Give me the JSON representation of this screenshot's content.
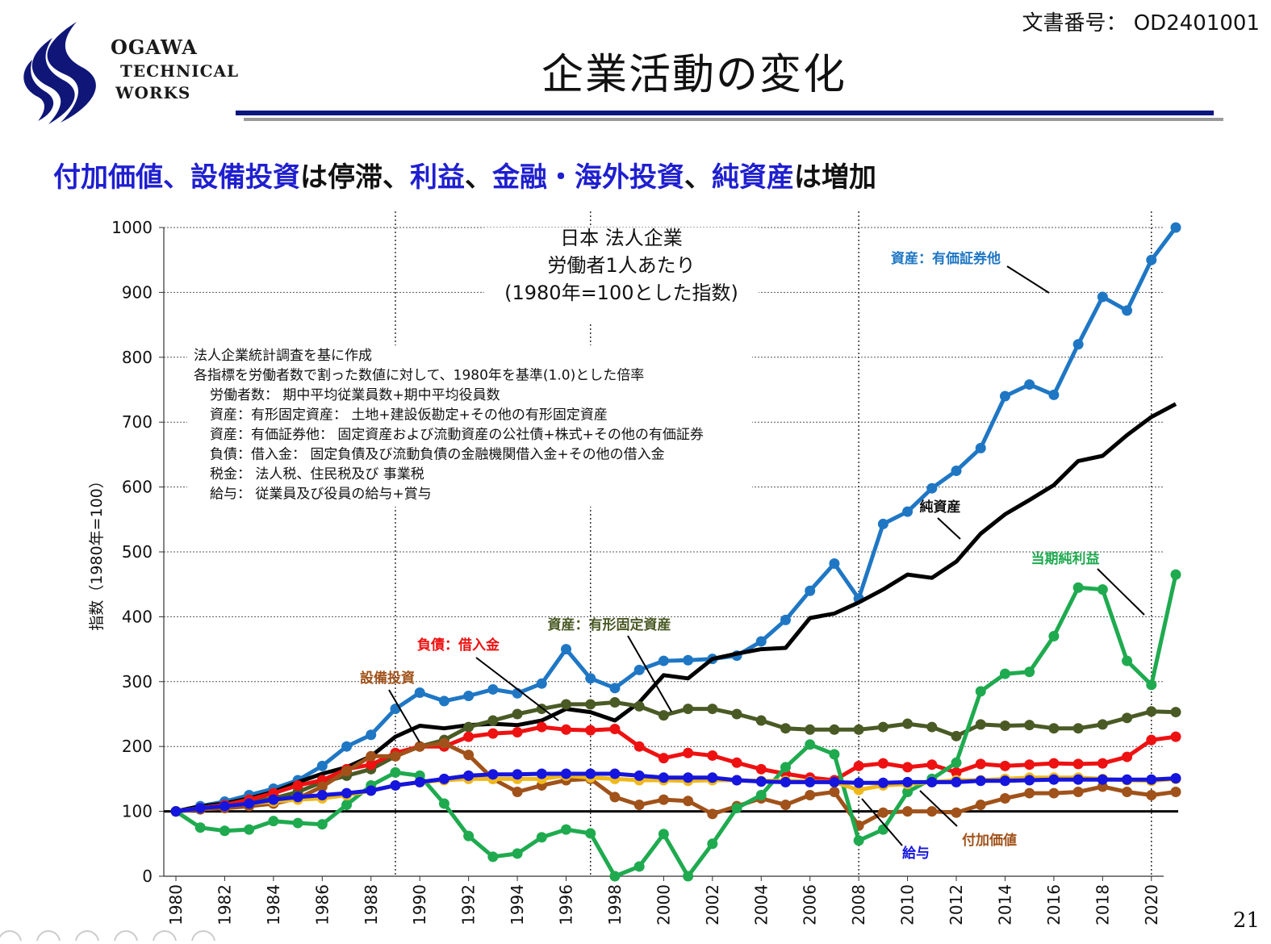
{
  "header": {
    "logo": {
      "line1": "OGAWA",
      "line2": "TECHNICAL",
      "line3": "WORKS"
    },
    "doc_number": "文書番号： OD2401001",
    "title": "企業活動の変化",
    "page_number": "21"
  },
  "subtitle": {
    "p1": "付加価値、設備投資",
    "p2": "は停滞、",
    "p3": "利益",
    "p4": "、",
    "p5": "金融・海外投資",
    "p6": "、",
    "p7": "純資産",
    "p8": "は増加"
  },
  "colors": {
    "accent_blue": "#1f1fd0",
    "rule_navy": "#0a1680"
  },
  "chart_data": {
    "type": "line",
    "title_lines": [
      "日本 法人企業",
      "労働者1人あたり",
      "(1980年=100とした指数)"
    ],
    "ylabel": "指数（1980年=100）",
    "ylim": [
      0,
      1000
    ],
    "yticks": [
      0,
      100,
      200,
      300,
      400,
      500,
      600,
      700,
      800,
      900,
      1000
    ],
    "xlim": [
      1980,
      2021
    ],
    "xticks": [
      1980,
      1982,
      1984,
      1986,
      1988,
      1990,
      1992,
      1994,
      1996,
      1998,
      2000,
      2002,
      2004,
      2006,
      2008,
      2010,
      2012,
      2014,
      2016,
      2018,
      2020
    ],
    "vlines": [
      1989,
      1997,
      2008,
      2020
    ],
    "baseline": 100,
    "notes": [
      "法人企業統計調査を基に作成",
      "各指標を労働者数で割った数値に対して、1980年を基準(1.0)とした倍率",
      "労働者数： 期中平均従業員数+期中平均役員数",
      "資産：有形固定資産： 土地+建設仮勘定+その他の有形固定資産",
      "資産：有価証券他： 固定資産および流動資産の公社債+株式+その他の有価証券",
      "負債：借入金： 固定負債及び流動負債の金融機関借入金+その他の借入金",
      "税金： 法人税、住民税及び 事業税",
      "給与： 従業員及び役員の給与+賞与"
    ],
    "series": [
      {
        "name": "資産：有価証券他",
        "color": "#1f77c4",
        "marker": true,
        "values": [
          100,
          108,
          115,
          125,
          135,
          148,
          170,
          200,
          218,
          258,
          283,
          270,
          278,
          288,
          282,
          297,
          350,
          305,
          290,
          318,
          332,
          333,
          335,
          340,
          362,
          395,
          440,
          482,
          428,
          543,
          562,
          598,
          625,
          660,
          740,
          758,
          742,
          820,
          893,
          872,
          950,
          1000,
          null
        ]
      },
      {
        "name": "純資産",
        "color": "#000000",
        "marker": false,
        "values": [
          100,
          108,
          112,
          120,
          130,
          145,
          158,
          168,
          185,
          215,
          232,
          228,
          233,
          235,
          233,
          240,
          258,
          253,
          240,
          268,
          310,
          305,
          335,
          343,
          350,
          352,
          398,
          405,
          422,
          442,
          465,
          460,
          485,
          528,
          558,
          580,
          603,
          640,
          648,
          680,
          708,
          728,
          null
        ]
      },
      {
        "name": "資産：有形固定資産",
        "color": "#4a5a25",
        "marker": true,
        "values": [
          100,
          105,
          110,
          115,
          120,
          130,
          145,
          155,
          165,
          185,
          200,
          210,
          230,
          240,
          250,
          258,
          265,
          265,
          268,
          262,
          248,
          258,
          258,
          250,
          240,
          228,
          226,
          226,
          226,
          230,
          235,
          230,
          216,
          234,
          232,
          233,
          228,
          228,
          234,
          244,
          254,
          253,
          null
        ]
      },
      {
        "name": "負債：借入金",
        "color": "#ee1111",
        "marker": true,
        "values": [
          100,
          105,
          110,
          118,
          128,
          140,
          148,
          165,
          172,
          190,
          200,
          200,
          215,
          220,
          222,
          230,
          226,
          225,
          227,
          200,
          182,
          190,
          186,
          175,
          165,
          158,
          152,
          148,
          170,
          174,
          168,
          172,
          160,
          173,
          170,
          172,
          174,
          173,
          174,
          184,
          210,
          215,
          null
        ]
      },
      {
        "name": "設備投資",
        "color": "#a0521a",
        "marker": true,
        "values": [
          100,
          103,
          105,
          108,
          112,
          120,
          138,
          162,
          185,
          185,
          200,
          205,
          187,
          150,
          130,
          140,
          148,
          150,
          122,
          110,
          118,
          116,
          96,
          108,
          120,
          110,
          125,
          130,
          78,
          98,
          100,
          100,
          98,
          110,
          120,
          128,
          128,
          130,
          138,
          130,
          125,
          130,
          null
        ]
      },
      {
        "name": "当期純利益",
        "color": "#1faa4f",
        "marker": true,
        "values": [
          100,
          75,
          70,
          72,
          85,
          82,
          80,
          110,
          140,
          160,
          155,
          112,
          62,
          30,
          35,
          60,
          72,
          66,
          0,
          15,
          65,
          0,
          50,
          105,
          125,
          168,
          203,
          188,
          55,
          72,
          130,
          150,
          175,
          285,
          312,
          315,
          370,
          445,
          442,
          332,
          295,
          465,
          null
        ]
      },
      {
        "name": "付加価値",
        "color": "#f0b81a",
        "marker": true,
        "values": [
          100,
          105,
          108,
          112,
          115,
          118,
          120,
          125,
          132,
          140,
          145,
          148,
          150,
          150,
          150,
          150,
          155,
          152,
          150,
          148,
          148,
          147,
          148,
          148,
          147,
          147,
          146,
          145,
          133,
          140,
          142,
          145,
          148,
          148,
          150,
          152,
          152,
          152,
          150,
          148,
          147,
          150,
          null
        ]
      },
      {
        "name": "給与",
        "color": "#1515dd",
        "marker": true,
        "values": [
          100,
          105,
          108,
          112,
          118,
          122,
          125,
          128,
          132,
          140,
          145,
          150,
          155,
          157,
          157,
          158,
          158,
          158,
          158,
          155,
          152,
          152,
          152,
          148,
          146,
          145,
          145,
          145,
          144,
          144,
          145,
          145,
          145,
          147,
          147,
          148,
          149,
          149,
          149,
          149,
          149,
          151,
          null
        ]
      }
    ],
    "annotations": [
      {
        "text": "資産：有価証券他"
      },
      {
        "text": "純資産"
      },
      {
        "text": "当期純利益"
      },
      {
        "text": "資産：有形固定資産"
      },
      {
        "text": "負債：借入金"
      },
      {
        "text": "設備投資"
      },
      {
        "text": "給与"
      },
      {
        "text": "付加価値"
      }
    ]
  }
}
